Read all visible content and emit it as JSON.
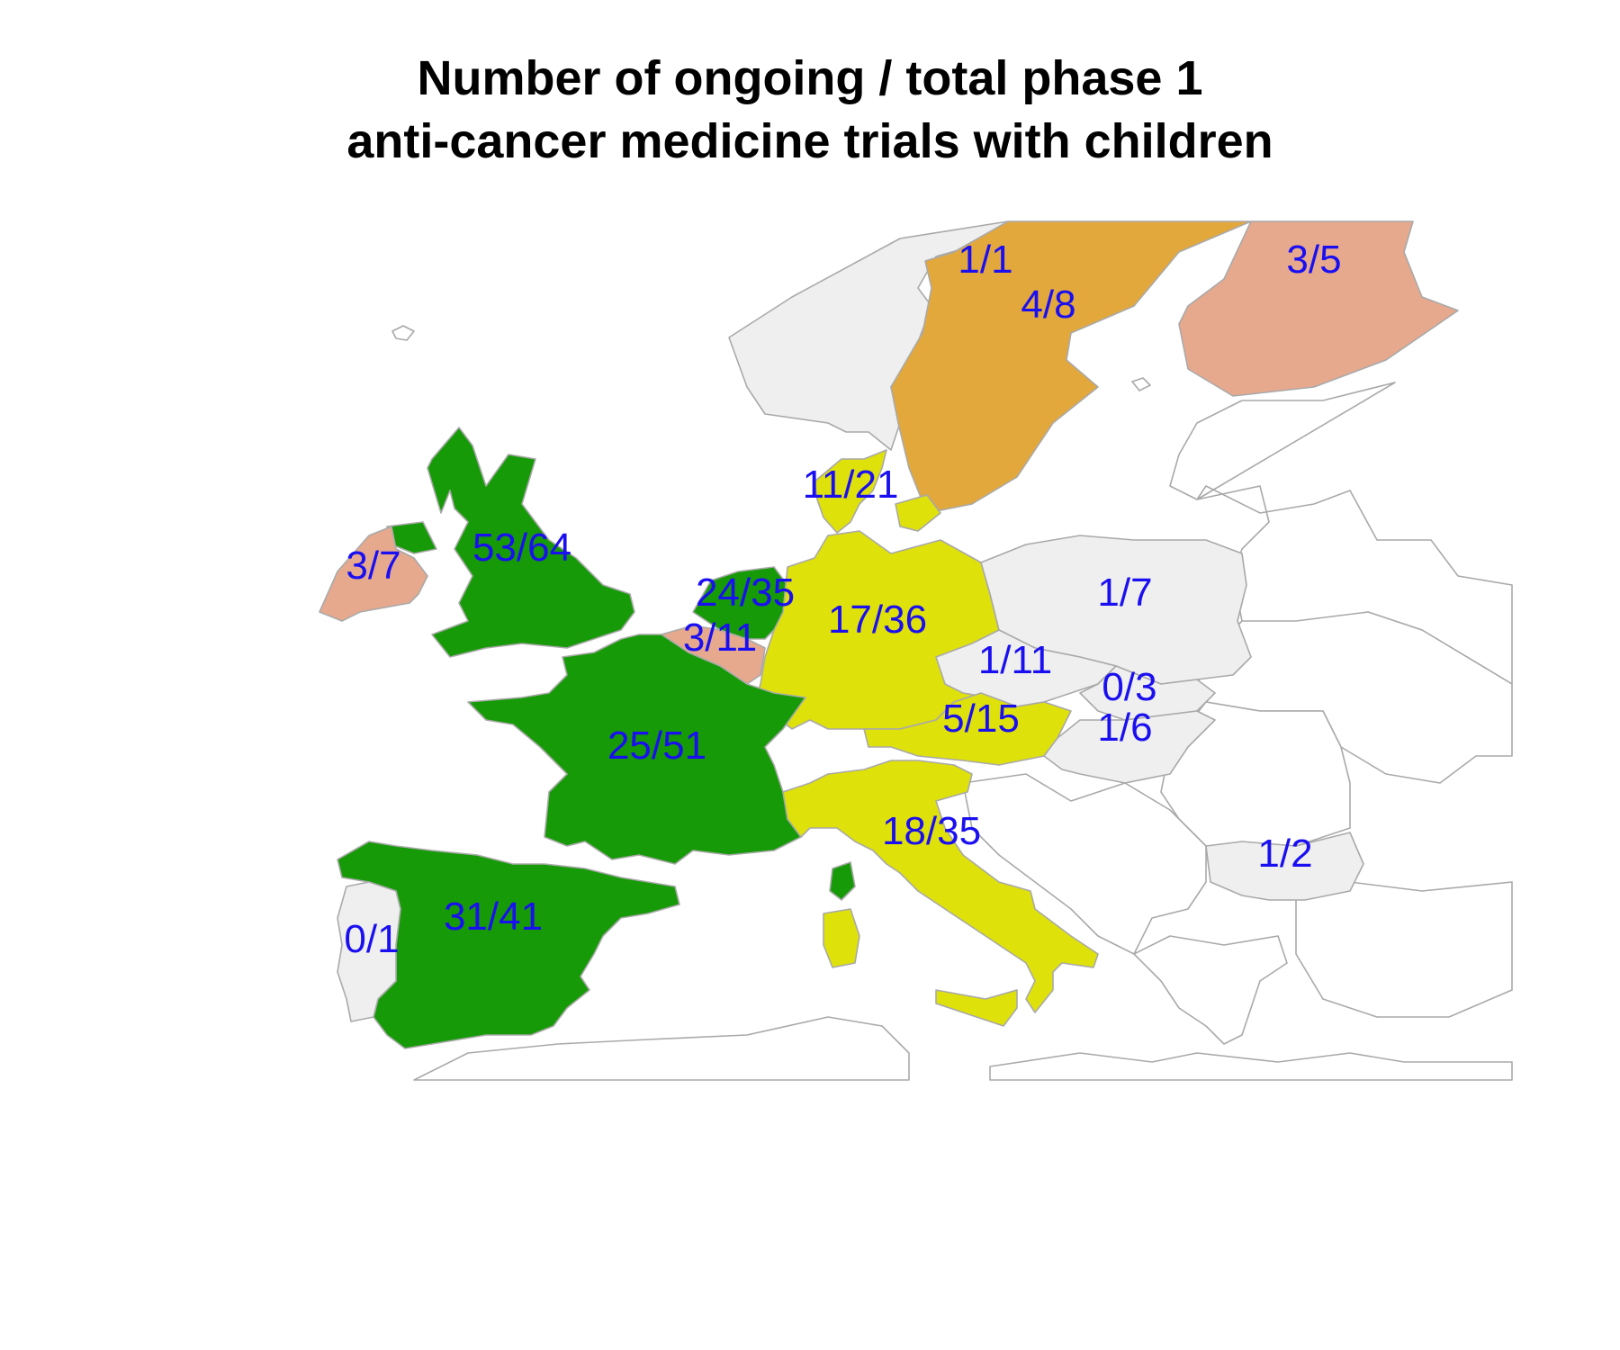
{
  "title": {
    "line1": "Number of ongoing / total phase 1",
    "line2": "anti-cancer medicine trials with children"
  },
  "colors": {
    "green": "#169a07",
    "yellow": "#dfe10a",
    "orange": "#e3a83c",
    "salmon": "#e6a98e",
    "lightgrey": "#efefef",
    "nodata": "#ffffff",
    "border": "#a9a9a9",
    "label": "#1a0ff0"
  },
  "countries": [
    {
      "name": "United Kingdom",
      "label": "53/64",
      "fill": "green"
    },
    {
      "name": "Ireland",
      "label": "3/7",
      "fill": "salmon"
    },
    {
      "name": "Norway",
      "label": "1/1",
      "fill": "lightgrey"
    },
    {
      "name": "Sweden",
      "label": "4/8",
      "fill": "orange"
    },
    {
      "name": "Finland",
      "label": "3/5",
      "fill": "salmon"
    },
    {
      "name": "Denmark",
      "label": "11/21",
      "fill": "yellow"
    },
    {
      "name": "Netherlands",
      "label": "24/35",
      "fill": "green"
    },
    {
      "name": "Belgium",
      "label": "3/11",
      "fill": "salmon"
    },
    {
      "name": "Germany",
      "label": "17/36",
      "fill": "yellow"
    },
    {
      "name": "Poland",
      "label": "1/7",
      "fill": "lightgrey"
    },
    {
      "name": "Czech Republic",
      "label": "1/11",
      "fill": "lightgrey"
    },
    {
      "name": "Slovakia",
      "label": "0/3",
      "fill": "lightgrey"
    },
    {
      "name": "Austria",
      "label": "5/15",
      "fill": "yellow"
    },
    {
      "name": "Hungary",
      "label": "1/6",
      "fill": "lightgrey"
    },
    {
      "name": "France",
      "label": "25/51",
      "fill": "green"
    },
    {
      "name": "Italy",
      "label": "18/35",
      "fill": "yellow"
    },
    {
      "name": "Bulgaria",
      "label": "1/2",
      "fill": "lightgrey"
    },
    {
      "name": "Spain",
      "label": "31/41",
      "fill": "green"
    },
    {
      "name": "Portugal",
      "label": "0/1",
      "fill": "lightgrey"
    }
  ]
}
